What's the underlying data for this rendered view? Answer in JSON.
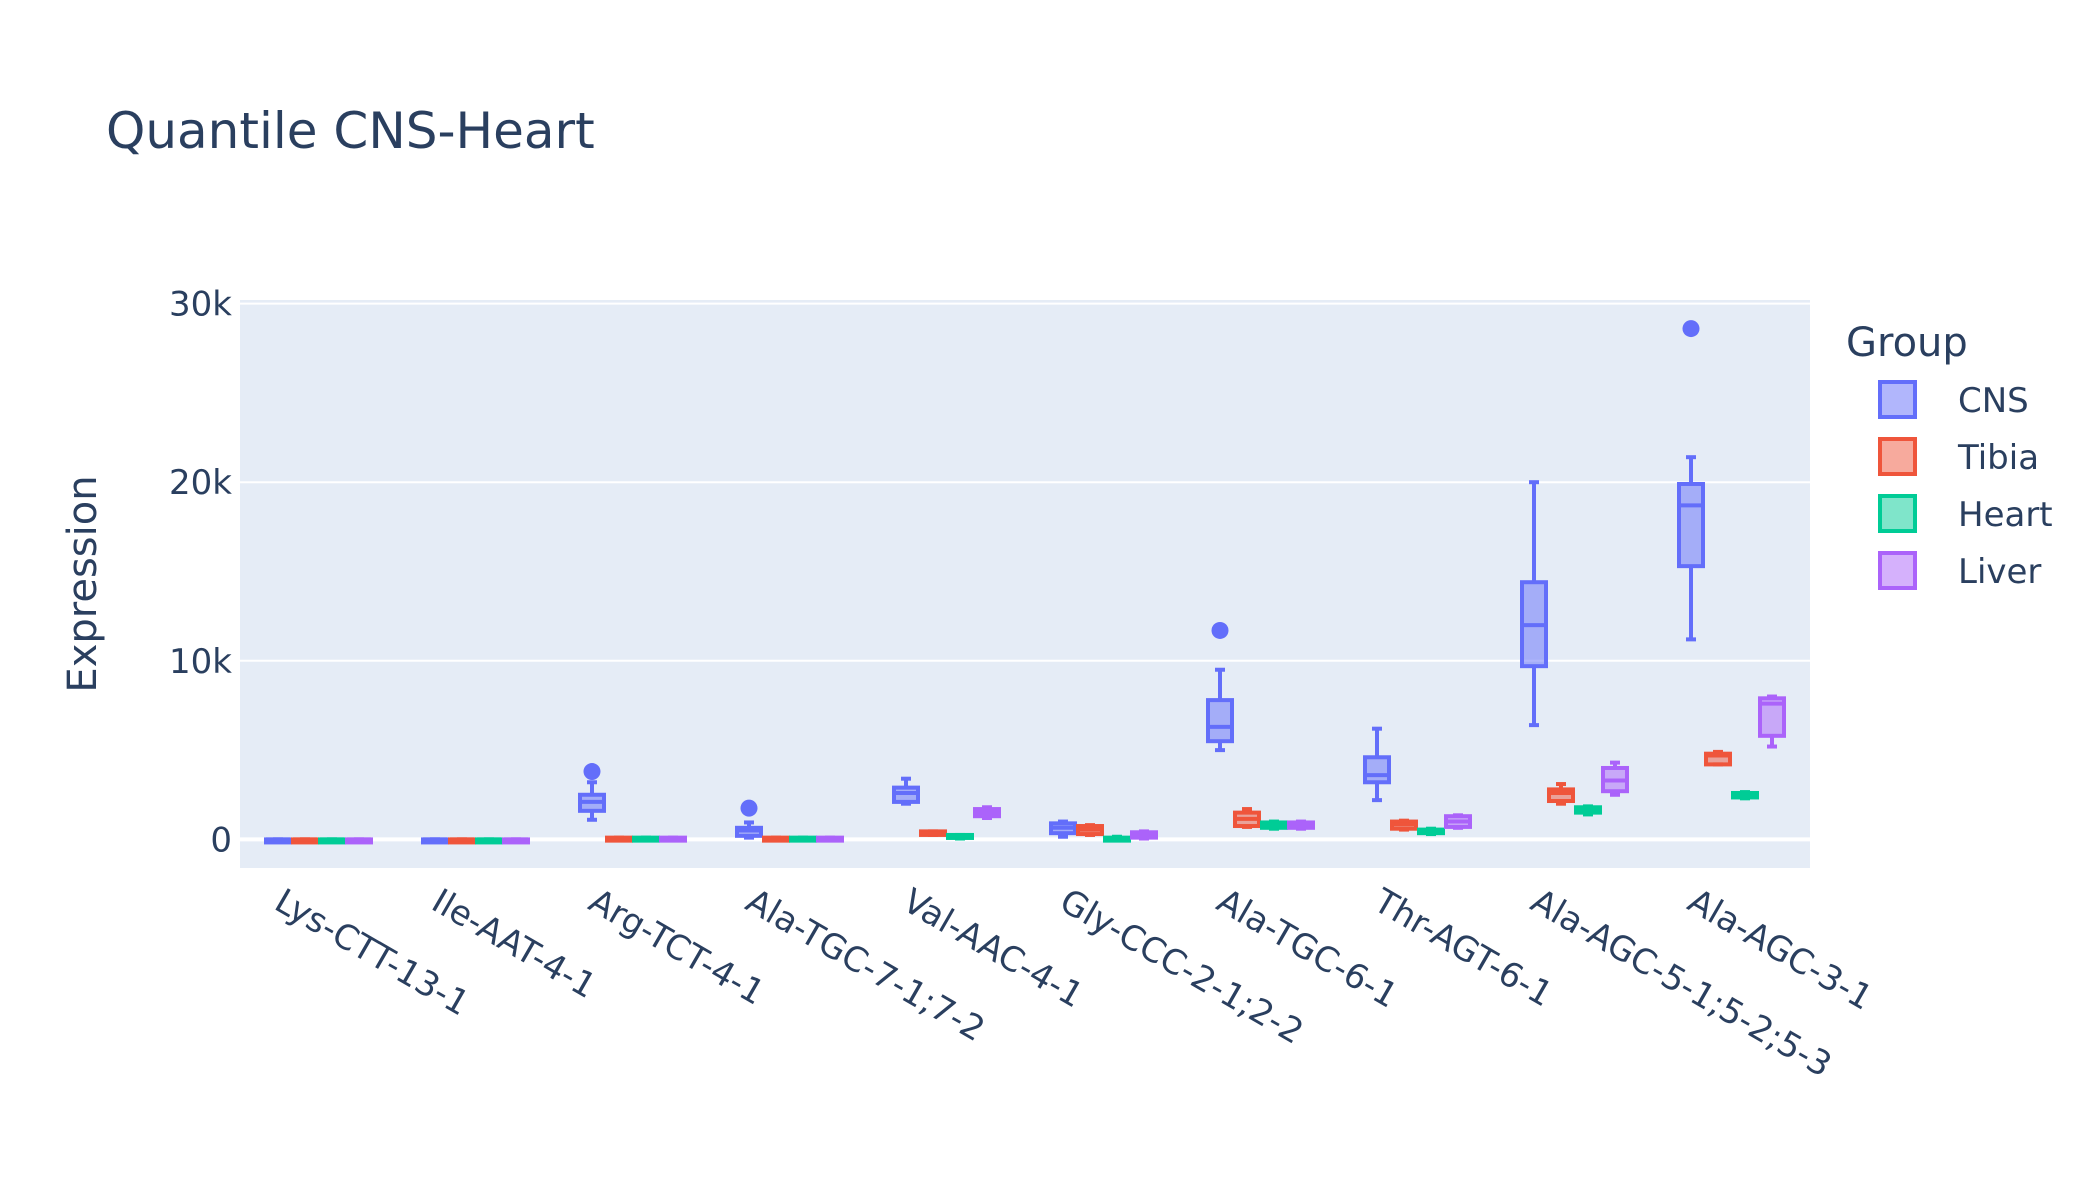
{
  "chart_data": {
    "type": "box",
    "title": "Quantile CNS-Heart",
    "xlabel": "",
    "ylabel": "Expression",
    "ylim": [
      -1600,
      30200
    ],
    "yticks": [
      0,
      10000,
      20000,
      30000
    ],
    "ytick_labels": [
      "0",
      "10k",
      "20k",
      "30k"
    ],
    "grid": true,
    "legend": {
      "title": "Group",
      "placement": "right"
    },
    "categories": [
      "Lys-CTT-13-1",
      "Ile-AAT-4-1",
      "Arg-TCT-4-1",
      "Ala-TGC-7-1;7-2",
      "Val-AAC-4-1",
      "Gly-CCC-2-1;2-2",
      "Ala-TGC-6-1",
      "Thr-AGT-6-1",
      "Ala-AGC-5-1;5-2;5-3",
      "Ala-AGC-3-1"
    ],
    "series": [
      {
        "name": "CNS",
        "color": "#636efa",
        "boxes": [
          {
            "lf": 0,
            "q1": 0,
            "med": 0,
            "q3": 0,
            "uf": 0,
            "outliers": []
          },
          {
            "lf": 0,
            "q1": 0,
            "med": 0,
            "q3": 0,
            "uf": 0,
            "outliers": []
          },
          {
            "lf": 1100,
            "q1": 1600,
            "med": 2100,
            "q3": 2500,
            "uf": 3200,
            "outliers": [
              3800
            ]
          },
          {
            "lf": 100,
            "q1": 200,
            "med": 500,
            "q3": 650,
            "uf": 950,
            "outliers": [
              1750
            ]
          },
          {
            "lf": 2000,
            "q1": 2100,
            "med": 2600,
            "q3": 2900,
            "uf": 3400,
            "outliers": []
          },
          {
            "lf": 150,
            "q1": 350,
            "med": 650,
            "q3": 900,
            "uf": 1000,
            "outliers": []
          },
          {
            "lf": 5000,
            "q1": 5500,
            "med": 6300,
            "q3": 7800,
            "uf": 9500,
            "outliers": [
              11700
            ]
          },
          {
            "lf": 2200,
            "q1": 3200,
            "med": 3600,
            "q3": 4600,
            "uf": 6200,
            "outliers": []
          },
          {
            "lf": 6400,
            "q1": 9700,
            "med": 12000,
            "q3": 14400,
            "uf": 20000,
            "outliers": []
          },
          {
            "lf": 11200,
            "q1": 15300,
            "med": 18700,
            "q3": 19900,
            "uf": 21400,
            "outliers": [
              28600
            ]
          }
        ]
      },
      {
        "name": "Tibia",
        "color": "#ef553b",
        "boxes": [
          {
            "lf": 0,
            "q1": 0,
            "med": 0,
            "q3": 0,
            "uf": 0,
            "outliers": []
          },
          {
            "lf": 0,
            "q1": 0,
            "med": 0,
            "q3": 0,
            "uf": 0,
            "outliers": []
          },
          {
            "lf": 0,
            "q1": 0,
            "med": 50,
            "q3": 100,
            "uf": 100,
            "outliers": []
          },
          {
            "lf": 0,
            "q1": 0,
            "med": 50,
            "q3": 100,
            "uf": 100,
            "outliers": []
          },
          {
            "lf": 250,
            "q1": 250,
            "med": 350,
            "q3": 450,
            "uf": 450,
            "outliers": []
          },
          {
            "lf": 250,
            "q1": 300,
            "med": 550,
            "q3": 750,
            "uf": 800,
            "outliers": []
          },
          {
            "lf": 700,
            "q1": 750,
            "med": 1150,
            "q3": 1500,
            "uf": 1700,
            "outliers": []
          },
          {
            "lf": 550,
            "q1": 600,
            "med": 850,
            "q3": 1000,
            "uf": 1050,
            "outliers": []
          },
          {
            "lf": 2000,
            "q1": 2150,
            "med": 2600,
            "q3": 2800,
            "uf": 3100,
            "outliers": []
          },
          {
            "lf": 4200,
            "q1": 4200,
            "med": 4700,
            "q3": 4800,
            "uf": 4900,
            "outliers": []
          }
        ]
      },
      {
        "name": "Heart",
        "color": "#00cc96",
        "boxes": [
          {
            "lf": 0,
            "q1": 0,
            "med": 0,
            "q3": 0,
            "uf": 0,
            "outliers": []
          },
          {
            "lf": 0,
            "q1": 0,
            "med": 0,
            "q3": 0,
            "uf": 0,
            "outliers": []
          },
          {
            "lf": 0,
            "q1": 0,
            "med": 50,
            "q3": 100,
            "uf": 100,
            "outliers": []
          },
          {
            "lf": 0,
            "q1": 0,
            "med": 50,
            "q3": 100,
            "uf": 100,
            "outliers": []
          },
          {
            "lf": 50,
            "q1": 100,
            "med": 150,
            "q3": 250,
            "uf": 250,
            "outliers": []
          },
          {
            "lf": 0,
            "q1": 0,
            "med": 50,
            "q3": 100,
            "uf": 150,
            "outliers": []
          },
          {
            "lf": 600,
            "q1": 650,
            "med": 800,
            "q3": 950,
            "uf": 1000,
            "outliers": []
          },
          {
            "lf": 300,
            "q1": 350,
            "med": 450,
            "q3": 550,
            "uf": 600,
            "outliers": []
          },
          {
            "lf": 1400,
            "q1": 1500,
            "med": 1650,
            "q3": 1800,
            "uf": 1850,
            "outliers": []
          },
          {
            "lf": 2300,
            "q1": 2350,
            "med": 2500,
            "q3": 2600,
            "uf": 2650,
            "outliers": []
          }
        ]
      },
      {
        "name": "Liver",
        "color": "#ab63fa",
        "boxes": [
          {
            "lf": 0,
            "q1": 0,
            "med": 0,
            "q3": 0,
            "uf": 0,
            "outliers": []
          },
          {
            "lf": 0,
            "q1": 0,
            "med": 0,
            "q3": 0,
            "uf": 0,
            "outliers": []
          },
          {
            "lf": 0,
            "q1": 0,
            "med": 50,
            "q3": 100,
            "uf": 100,
            "outliers": []
          },
          {
            "lf": 0,
            "q1": 0,
            "med": 50,
            "q3": 100,
            "uf": 100,
            "outliers": []
          },
          {
            "lf": 1200,
            "q1": 1300,
            "med": 1500,
            "q3": 1700,
            "uf": 1800,
            "outliers": []
          },
          {
            "lf": 50,
            "q1": 100,
            "med": 250,
            "q3": 400,
            "uf": 450,
            "outliers": []
          },
          {
            "lf": 600,
            "q1": 650,
            "med": 800,
            "q3": 950,
            "uf": 1000,
            "outliers": []
          },
          {
            "lf": 650,
            "q1": 700,
            "med": 1000,
            "q3": 1300,
            "uf": 1350,
            "outliers": []
          },
          {
            "lf": 2500,
            "q1": 2700,
            "med": 3300,
            "q3": 4000,
            "uf": 4300,
            "outliers": []
          },
          {
            "lf": 5200,
            "q1": 5800,
            "med": 7600,
            "q3": 7900,
            "uf": 8000,
            "outliers": []
          }
        ]
      }
    ]
  }
}
